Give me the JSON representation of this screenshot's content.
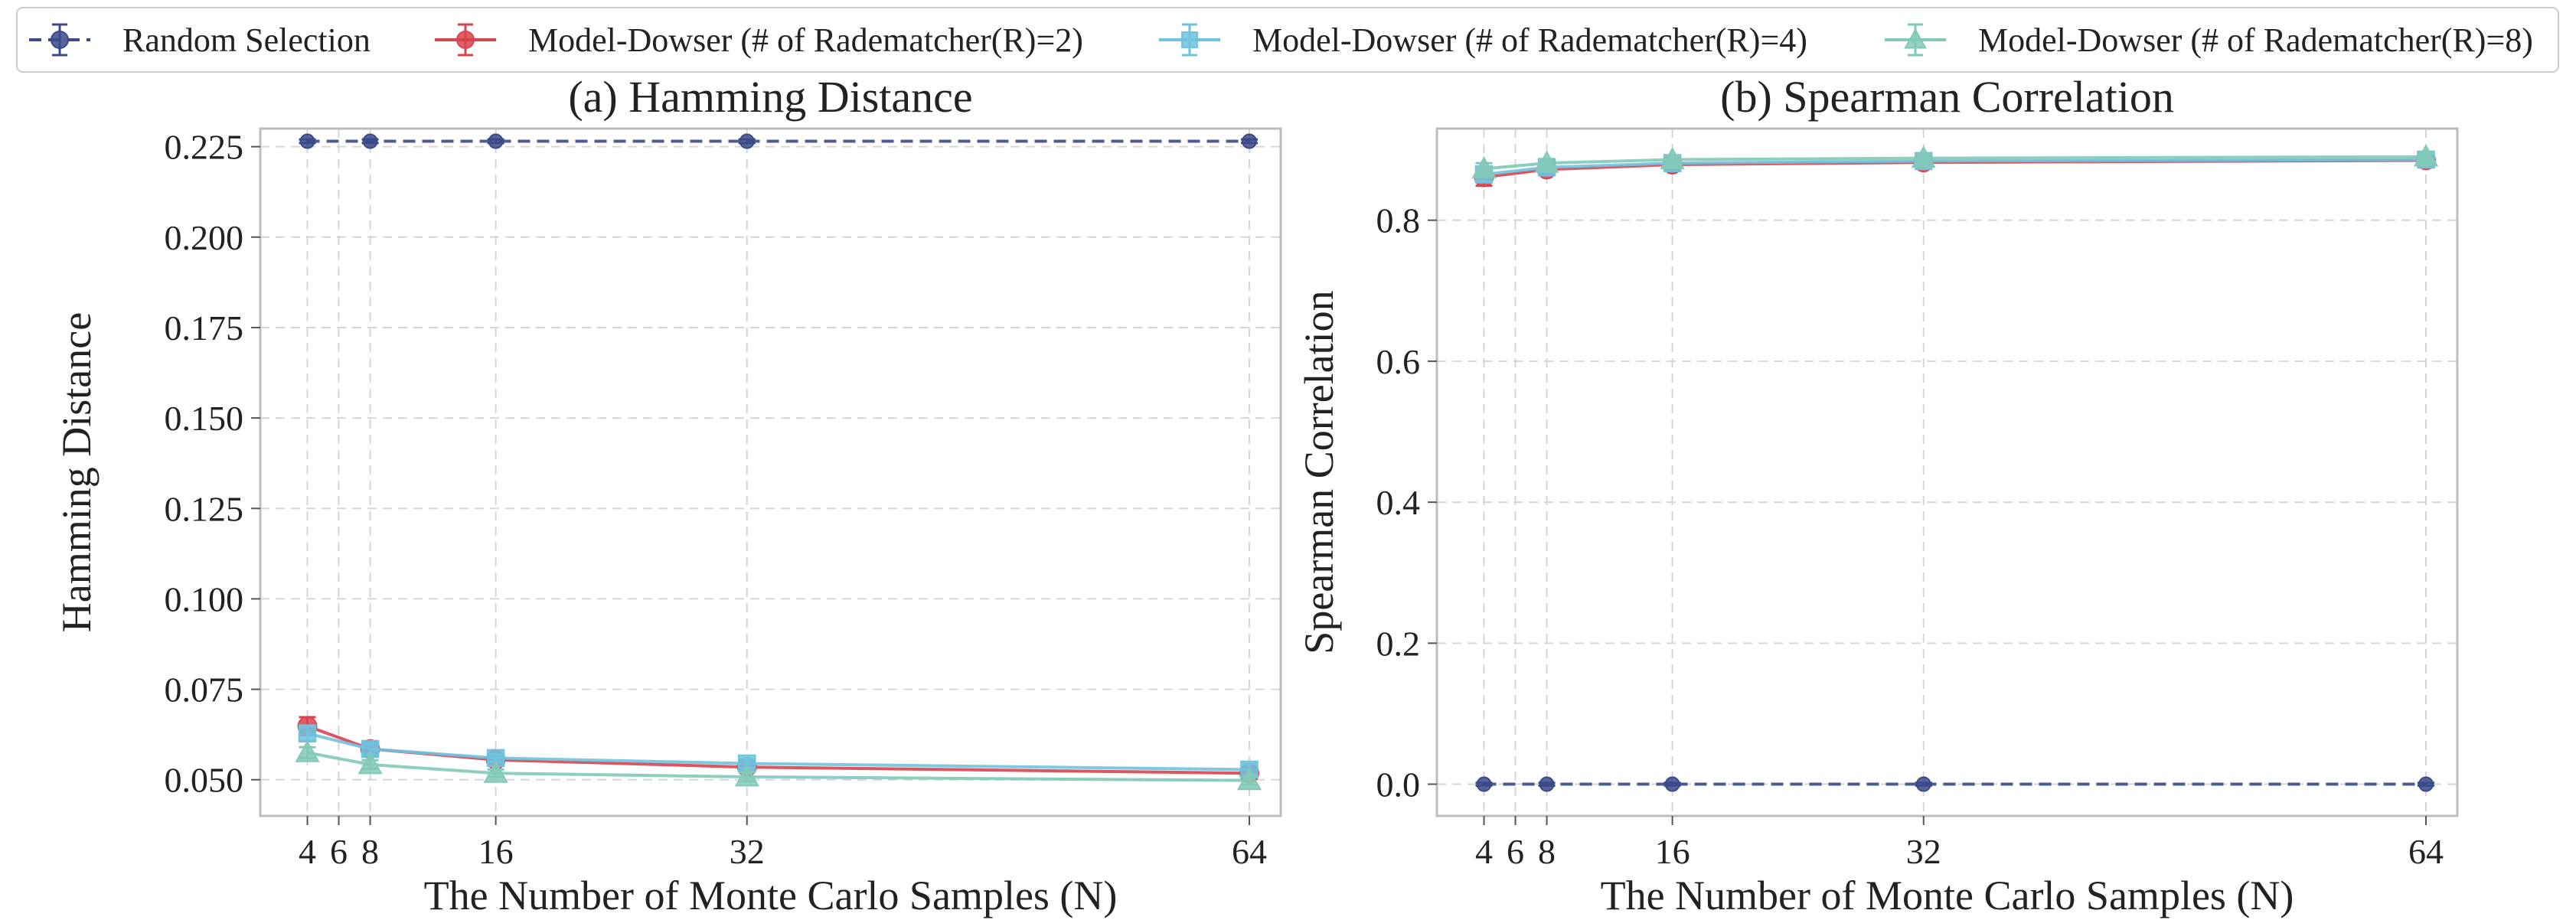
{
  "colors": {
    "random": "#3b4a8a",
    "r2": "#d9434e",
    "r4": "#6fc3de",
    "r8": "#82c9b8",
    "grid": "#d6d6d6",
    "frame": "#bdbdbd"
  },
  "legend": {
    "placement": "top",
    "entries": [
      {
        "key": "random",
        "label": "Random Selection",
        "marker": "circle",
        "dashed": true
      },
      {
        "key": "r2",
        "label": "Model-Dowser (# of Radematcher(R)=2)",
        "marker": "circle",
        "dashed": false
      },
      {
        "key": "r4",
        "label": "Model-Dowser (# of Radematcher(R)=4)",
        "marker": "square",
        "dashed": false
      },
      {
        "key": "r8",
        "label": "Model-Dowser (# of Radematcher(R)=8)",
        "marker": "triangle",
        "dashed": false
      }
    ]
  },
  "chart_data": [
    {
      "type": "line",
      "title": "(a) Hamming Distance",
      "xlabel": "The Number of Monte Carlo Samples (N)",
      "ylabel": "Hamming Distance",
      "x": [
        4,
        8,
        16,
        32,
        64
      ],
      "xticks": [
        4,
        6,
        8,
        16,
        32,
        64
      ],
      "xlim": [
        1,
        66
      ],
      "ylim": [
        0.04,
        0.23
      ],
      "yticks": [
        0.05,
        0.075,
        0.1,
        0.125,
        0.15,
        0.175,
        0.2,
        0.225
      ],
      "ytick_labels": [
        "0.050",
        "0.075",
        "0.100",
        "0.125",
        "0.150",
        "0.175",
        "0.200",
        "0.225"
      ],
      "grid": true,
      "series": [
        {
          "key": "random",
          "name": "Random Selection",
          "values": [
            0.2265,
            0.2265,
            0.2265,
            0.2265,
            0.2265
          ],
          "errors": [
            0.0005,
            0.0005,
            0.0005,
            0.0005,
            0.0005
          ]
        },
        {
          "key": "r2",
          "name": "Model-Dowser (# of Radematcher(R)=2)",
          "values": [
            0.0648,
            0.0585,
            0.0555,
            0.0535,
            0.0518
          ],
          "errors": [
            0.0025,
            0.0015,
            0.001,
            0.0012,
            0.0015
          ]
        },
        {
          "key": "r4",
          "name": "Model-Dowser (# of Radematcher(R)=4)",
          "values": [
            0.0628,
            0.0585,
            0.056,
            0.0545,
            0.0528
          ],
          "errors": [
            0.002,
            0.0015,
            0.001,
            0.0012,
            0.0015
          ]
        },
        {
          "key": "r8",
          "name": "Model-Dowser (# of Radematcher(R)=8)",
          "values": [
            0.0575,
            0.0542,
            0.0518,
            0.0508,
            0.0498
          ],
          "errors": [
            0.0015,
            0.0012,
            0.001,
            0.0012,
            0.0012
          ]
        }
      ]
    },
    {
      "type": "line",
      "title": "(b) Spearman Correlation",
      "xlabel": "The Number of Monte Carlo Samples (N)",
      "ylabel": "Spearman Correlation",
      "x": [
        4,
        8,
        16,
        32,
        64
      ],
      "xticks": [
        4,
        6,
        8,
        16,
        32,
        64
      ],
      "xlim": [
        1,
        66
      ],
      "ylim": [
        -0.045,
        0.93
      ],
      "yticks": [
        0.0,
        0.2,
        0.4,
        0.6,
        0.8
      ],
      "ytick_labels": [
        "0.0",
        "0.2",
        "0.4",
        "0.6",
        "0.8"
      ],
      "grid": true,
      "series": [
        {
          "key": "random",
          "name": "Random Selection",
          "values": [
            0.0,
            0.0,
            0.0,
            0.0,
            0.0
          ],
          "errors": [
            0.002,
            0.002,
            0.002,
            0.002,
            0.002
          ]
        },
        {
          "key": "r2",
          "name": "Model-Dowser (# of Radematcher(R)=2)",
          "values": [
            0.861,
            0.872,
            0.879,
            0.882,
            0.885
          ],
          "errors": [
            0.012,
            0.008,
            0.006,
            0.005,
            0.005
          ]
        },
        {
          "key": "r4",
          "name": "Model-Dowser (# of Radematcher(R)=4)",
          "values": [
            0.865,
            0.875,
            0.881,
            0.884,
            0.886
          ],
          "errors": [
            0.01,
            0.008,
            0.006,
            0.01,
            0.008
          ]
        },
        {
          "key": "r8",
          "name": "Model-Dowser (# of Radematcher(R)=8)",
          "values": [
            0.873,
            0.881,
            0.886,
            0.888,
            0.89
          ],
          "errors": [
            0.008,
            0.006,
            0.005,
            0.005,
            0.005
          ]
        }
      ]
    }
  ]
}
